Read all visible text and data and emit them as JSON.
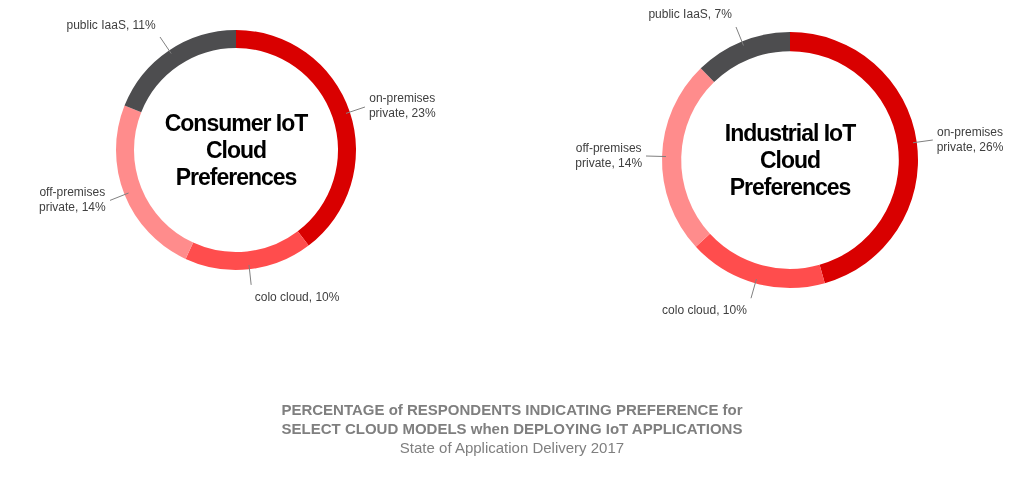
{
  "chart_data": [
    {
      "type": "donut",
      "title": "Consumer IoT Cloud Preferences",
      "categories": [
        "on-premises private",
        "colo cloud",
        "off-premises private",
        "public IaaS"
      ],
      "values": [
        23,
        10,
        14,
        11
      ],
      "value_labels": [
        "23%",
        "10%",
        "14%",
        "11%"
      ],
      "colors": [
        "#d90000",
        "#ff4d4d",
        "#ff8c8c",
        "#4d4d4f"
      ],
      "legend": false,
      "annotations": [
        "PERCENTAGE of RESPONDENTS INDICATING PREFERENCE for SELECT CLOUD MODELS when DEPLOYING IoT APPLICATIONS",
        "State of Application Delivery 2017"
      ]
    },
    {
      "type": "donut",
      "title": "Industrial IoT Cloud Preferences",
      "categories": [
        "on-premises private",
        "colo cloud",
        "off-premises private",
        "public IaaS"
      ],
      "values": [
        26,
        10,
        14,
        7
      ],
      "value_labels": [
        "26%",
        "10%",
        "14%",
        "7%"
      ],
      "colors": [
        "#d90000",
        "#ff4d4d",
        "#ff8c8c",
        "#4d4d4f"
      ],
      "legend": false
    }
  ]
}
